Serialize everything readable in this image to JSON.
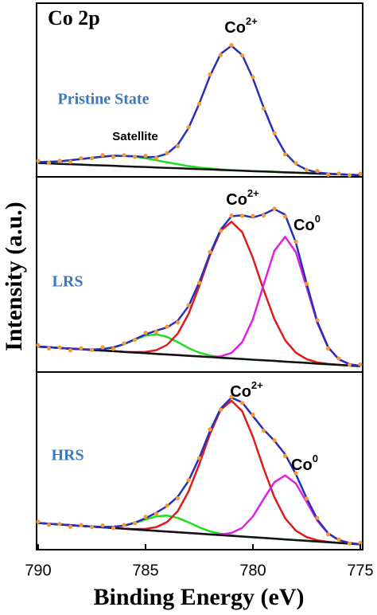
{
  "chart_data": [
    {
      "type": "line",
      "title": "Co 2p",
      "label": "Pristine State",
      "ylabel": "Intensity (a.u.)",
      "annotations": [
        {
          "text": "Co",
          "sup": "2+"
        },
        {
          "text": "Satellite"
        }
      ],
      "xlim": [
        790,
        775
      ],
      "ylim": [
        0,
        100
      ],
      "x": [
        790,
        789.5,
        789,
        788.5,
        788,
        787.5,
        787,
        786.5,
        786,
        785.5,
        785,
        784.5,
        784,
        783.5,
        783,
        782.5,
        782,
        781.5,
        781,
        780.5,
        780,
        779.5,
        779,
        778.5,
        778,
        777.5,
        777,
        776.5,
        776,
        775.5,
        775
      ],
      "series": [
        {
          "color": "#22dd22",
          "values": [
            8.5,
            8.7,
            9.0,
            9.6,
            10.3,
            11.0,
            11.7,
            12.2,
            12.1,
            11.7,
            10.8,
            9.6,
            8.4,
            7.3,
            6.2,
            5.4,
            4.8,
            4.3,
            3.8,
            3.6,
            3.3,
            3.1,
            2.9,
            2.6,
            2.4,
            2.2,
            1.9,
            1.7,
            1.5,
            1.2,
            1.0
          ]
        },
        {
          "color": "#111111",
          "values": [
            8.0,
            7.8,
            7.5,
            7.3,
            7.1,
            6.8,
            6.6,
            6.4,
            6.1,
            5.9,
            5.7,
            5.4,
            5.2,
            5.0,
            4.7,
            4.5,
            4.3,
            4.0,
            3.8,
            3.6,
            3.3,
            3.1,
            2.9,
            2.6,
            2.4,
            2.2,
            1.9,
            1.7,
            1.5,
            1.2,
            1.0
          ]
        },
        {
          "color": "#2a2fb8",
          "values": [
            8.5,
            8.7,
            9.0,
            9.6,
            10.3,
            11.0,
            11.7,
            12.2,
            12.1,
            11.9,
            11.4,
            11.5,
            13.4,
            18.6,
            28.2,
            42.4,
            58.4,
            71.2,
            75.8,
            70.5,
            56.9,
            40.1,
            24.9,
            13.9,
            7.4,
            4.1,
            2.5,
            1.9,
            1.5,
            1.2,
            1.0
          ]
        },
        {
          "color": "#f39a35",
          "style": "points",
          "values": [
            9.3,
            8.1,
            9.3,
            8.7,
            10.8,
            10.8,
            12.6,
            11.5,
            12.5,
            11.6,
            12.2,
            10.9,
            13.7,
            17.7,
            28.7,
            42.2,
            59.3,
            70.5,
            76.2,
            70.2,
            57.7,
            39.5,
            25.2,
            13.0,
            7.9,
            3.9,
            3.4,
            1.2,
            1.9,
            0.9,
            1.8
          ]
        }
      ]
    },
    {
      "type": "line",
      "label": "LRS",
      "annotations": [
        {
          "text": "Co",
          "sup": "2+"
        },
        {
          "text": "Co",
          "sup": "0"
        }
      ],
      "xlim": [
        790,
        775
      ],
      "ylim": [
        0,
        100
      ],
      "x": [
        790,
        789.5,
        789,
        788.5,
        788,
        787.5,
        787,
        786.5,
        786,
        785.5,
        785,
        784.5,
        784,
        783.5,
        783,
        782.5,
        782,
        781.5,
        781,
        780.5,
        780,
        779.5,
        779,
        778.5,
        778,
        777.5,
        777,
        776.5,
        776,
        775.5,
        775
      ],
      "series": [
        {
          "color": "#22dd22",
          "values": [
            13.0,
            12.7,
            12.3,
            12.0,
            11.7,
            11.5,
            11.8,
            12.6,
            14.3,
            16.6,
            18.7,
            19.3,
            18.0,
            15.3,
            12.3,
            9.9,
            8.5,
            7.5,
            7.0,
            6.7,
            6.3,
            6.0,
            5.7,
            5.3,
            5.0,
            4.7,
            4.3,
            4.0,
            3.7,
            3.3,
            3.0
          ]
        },
        {
          "color": "#e01b1b",
          "values": [
            13.0,
            12.7,
            12.3,
            12.0,
            11.7,
            11.3,
            11.0,
            10.7,
            10.3,
            10.2,
            10.3,
            11.2,
            13.9,
            19.7,
            29.7,
            44.0,
            59.8,
            72.3,
            77.0,
            71.7,
            58.4,
            42.0,
            27.1,
            16.3,
            9.9,
            6.6,
            4.9,
            4.2,
            3.7,
            3.3,
            3.0
          ]
        },
        {
          "color": "#e020e0",
          "values": [
            13.0,
            12.7,
            12.3,
            12.0,
            11.7,
            11.3,
            11.0,
            10.7,
            10.3,
            10.0,
            9.7,
            9.3,
            9.0,
            8.7,
            8.3,
            8.0,
            7.7,
            8.0,
            9.8,
            15.3,
            27.1,
            44.8,
            62.1,
            69.3,
            61.4,
            43.5,
            25.1,
            12.6,
            6.5,
            4.0,
            3.1
          ]
        },
        {
          "color": "#111111",
          "values": [
            13.0,
            12.7,
            12.3,
            12.0,
            11.7,
            11.3,
            11.0,
            10.7,
            10.3,
            10.0,
            9.7,
            9.3,
            9.0,
            8.7,
            8.3,
            8.0,
            7.7,
            7.3,
            7.0,
            6.7,
            6.3,
            6.0,
            5.7,
            5.3,
            5.0,
            4.7,
            4.3,
            4.0,
            3.7,
            3.3,
            3.0
          ]
        },
        {
          "color": "#2a2fb8",
          "values": [
            13.0,
            12.7,
            12.3,
            12.0,
            11.7,
            11.5,
            11.8,
            12.6,
            14.3,
            16.8,
            19.3,
            21.2,
            22.9,
            26.3,
            33.7,
            45.9,
            60.6,
            73.0,
            79.8,
            80.3,
            79.2,
            80.8,
            83.5,
            80.6,
            66.3,
            45.4,
            25.7,
            12.8,
            6.5,
            4.0,
            3.1
          ]
        },
        {
          "color": "#f39a35",
          "style": "points",
          "values": [
            13.8,
            12.1,
            12.6,
            11.1,
            12.2,
            11.3,
            12.7,
            11.9,
            14.7,
            16.5,
            20.1,
            20.6,
            23.2,
            25.4,
            34.2,
            45.7,
            61.5,
            72.3,
            80.2,
            80.0,
            80.0,
            80.2,
            83.8,
            79.7,
            66.8,
            45.2,
            26.6,
            12.1,
            6.9,
            3.7,
            3.9
          ]
        }
      ]
    },
    {
      "type": "line",
      "label": "HRS",
      "xlabel": "Binding Energy (eV)",
      "annotations": [
        {
          "text": "Co",
          "sup": "2+"
        },
        {
          "text": "Co",
          "sup": "0"
        }
      ],
      "xlim": [
        790,
        775
      ],
      "xticks": [
        790,
        785,
        780,
        775
      ],
      "ylim": [
        0,
        100
      ],
      "x": [
        790,
        789.5,
        789,
        788.5,
        788,
        787.5,
        787,
        786.5,
        786,
        785.5,
        785,
        784.5,
        784,
        783.5,
        783,
        782.5,
        782,
        781.5,
        781,
        780.5,
        780,
        779.5,
        779,
        778.5,
        778,
        777.5,
        777,
        776.5,
        776,
        775.5,
        775
      ],
      "series": [
        {
          "color": "#22dd22",
          "values": [
            15.0,
            14.6,
            14.2,
            13.8,
            13.4,
            13.0,
            12.8,
            12.9,
            13.5,
            15.0,
            17.0,
            18.7,
            19.2,
            17.9,
            15.4,
            12.6,
            10.3,
            8.9,
            8.0,
            7.4,
            7.0,
            6.6,
            6.2,
            5.8,
            5.4,
            5.0,
            4.6,
            4.2,
            3.8,
            3.4,
            3.0
          ]
        },
        {
          "color": "#e01b1b",
          "values": [
            15.0,
            14.6,
            14.2,
            13.8,
            13.4,
            13.0,
            12.6,
            12.2,
            11.8,
            11.6,
            11.7,
            12.7,
            15.5,
            21.7,
            32.7,
            48.1,
            65.1,
            78.8,
            83.8,
            78.0,
            63.5,
            45.7,
            29.5,
            17.7,
            10.7,
            7.1,
            5.3,
            4.4,
            3.8,
            3.4,
            3.0
          ]
        },
        {
          "color": "#e020e0",
          "values": [
            15.0,
            14.6,
            14.2,
            13.8,
            13.4,
            13.0,
            12.6,
            12.2,
            11.8,
            11.4,
            11.0,
            10.6,
            10.2,
            9.8,
            9.4,
            9.0,
            8.6,
            8.6,
            9.4,
            12.3,
            18.7,
            28.5,
            38.0,
            41.8,
            37.2,
            26.9,
            16.3,
            9.1,
            5.4,
            3.8,
            3.0
          ]
        },
        {
          "color": "#111111",
          "values": [
            15.0,
            14.6,
            14.2,
            13.8,
            13.4,
            13.0,
            12.6,
            12.2,
            11.8,
            11.4,
            11.0,
            10.6,
            10.2,
            9.8,
            9.4,
            9.0,
            8.6,
            8.2,
            7.8,
            7.4,
            7.0,
            6.6,
            6.2,
            5.8,
            5.4,
            5.0,
            4.6,
            4.2,
            3.8,
            3.4,
            3.0
          ]
        },
        {
          "color": "#2a2fb8",
          "values": [
            15.0,
            14.6,
            14.2,
            13.8,
            13.4,
            13.0,
            12.8,
            12.9,
            13.5,
            15.2,
            17.7,
            20.8,
            24.5,
            29.8,
            38.7,
            51.7,
            66.8,
            79.5,
            85.6,
            82.9,
            75.2,
            67.6,
            61.3,
            53.7,
            42.5,
            29.0,
            17.0,
            9.3,
            5.4,
            3.8,
            3.0
          ]
        },
        {
          "color": "#f39a35",
          "style": "points",
          "values": [
            15.8,
            14.0,
            14.5,
            12.9,
            13.9,
            12.8,
            13.7,
            12.2,
            13.9,
            14.9,
            18.5,
            20.2,
            24.8,
            28.9,
            39.2,
            51.5,
            67.7,
            78.8,
            86.0,
            82.6,
            76.0,
            67.0,
            61.6,
            52.8,
            43.0,
            28.8,
            17.9,
            8.6,
            5.8,
            3.5,
            3.8
          ]
        }
      ]
    }
  ]
}
